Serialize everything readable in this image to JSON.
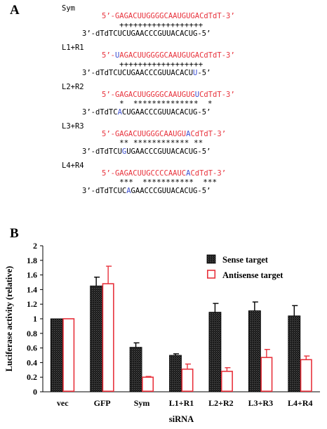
{
  "panelA": {
    "letter": "A",
    "groups": [
      {
        "label": "Sym",
        "top": [
          "5’-GAGACUUGGGGCAAUGUGACdTdT-3’"
        ],
        "stars": "++++++++++++++++++",
        "bottom": [
          "3’-dTdTCUCUGAACCCGUUACACUG-5’"
        ]
      },
      {
        "label": "L1+R1",
        "top": [
          "5’-",
          "U",
          "AGACUUGGGGCAAUGUGACdTdT-3’"
        ],
        "stars": "++++++++++++++++++",
        "bottom": [
          "3’-dTdTCUCUGAACCCGUUACACU",
          "U",
          "-5’"
        ]
      },
      {
        "label": "L2+R2",
        "top": [
          "5’-GAGACUUGGGGCAAUGUG",
          "U",
          "CdTdT-3’"
        ],
        "stars": "*  **************  *",
        "bottom": [
          "3’-dTdTC",
          "A",
          "CUGAACCCGUUACACUG-5’"
        ]
      },
      {
        "label": "L3+R3",
        "top": [
          "5’-GAGACUUGGGCAAUGU",
          "A",
          "CdTdT-3’"
        ],
        "stars": "** ************ **",
        "bottom": [
          "3’-dTdTCU",
          "G",
          "UGAACCCGUUACACUG-5’"
        ]
      },
      {
        "label": "L4+R4",
        "top": [
          "5’-GAGACUUGCCCCAAUC",
          "A",
          "CdTdT-3’"
        ],
        "stars": "***  ***********  ***",
        "bottom": [
          "3’-dTdTCUC",
          "A",
          "GAACCCGUUACACUG-5’"
        ]
      }
    ]
  },
  "panelB": {
    "letter": "B"
  },
  "chart_data": {
    "type": "bar",
    "categories": [
      "vec",
      "GFP",
      "Sym",
      "L1+R1",
      "L2+R2",
      "L3+R3",
      "L4+R4"
    ],
    "series": [
      {
        "name": "Sense target",
        "values": [
          1.0,
          1.45,
          0.61,
          0.5,
          1.09,
          1.11,
          1.04
        ],
        "errors": [
          0,
          0.12,
          0.06,
          0.02,
          0.12,
          0.12,
          0.14
        ],
        "color": "#1a1a1a"
      },
      {
        "name": "Antisense target",
        "values": [
          1.0,
          1.48,
          0.2,
          0.31,
          0.28,
          0.47,
          0.44
        ],
        "errors": [
          0,
          0.24,
          0.01,
          0.07,
          0.05,
          0.11,
          0.05
        ],
        "color": "#e8323c"
      }
    ],
    "ylabel": "Luciferase activity (relative)",
    "xlabel": "siRNA",
    "ylim": [
      0,
      2
    ],
    "yticks": [
      "0",
      "0.2",
      "0.4",
      "0.6",
      "0.8",
      "1",
      "1.2",
      "1.4",
      "1.6",
      "1.8",
      "2"
    ],
    "legend_position": "top-right",
    "grid": false
  }
}
